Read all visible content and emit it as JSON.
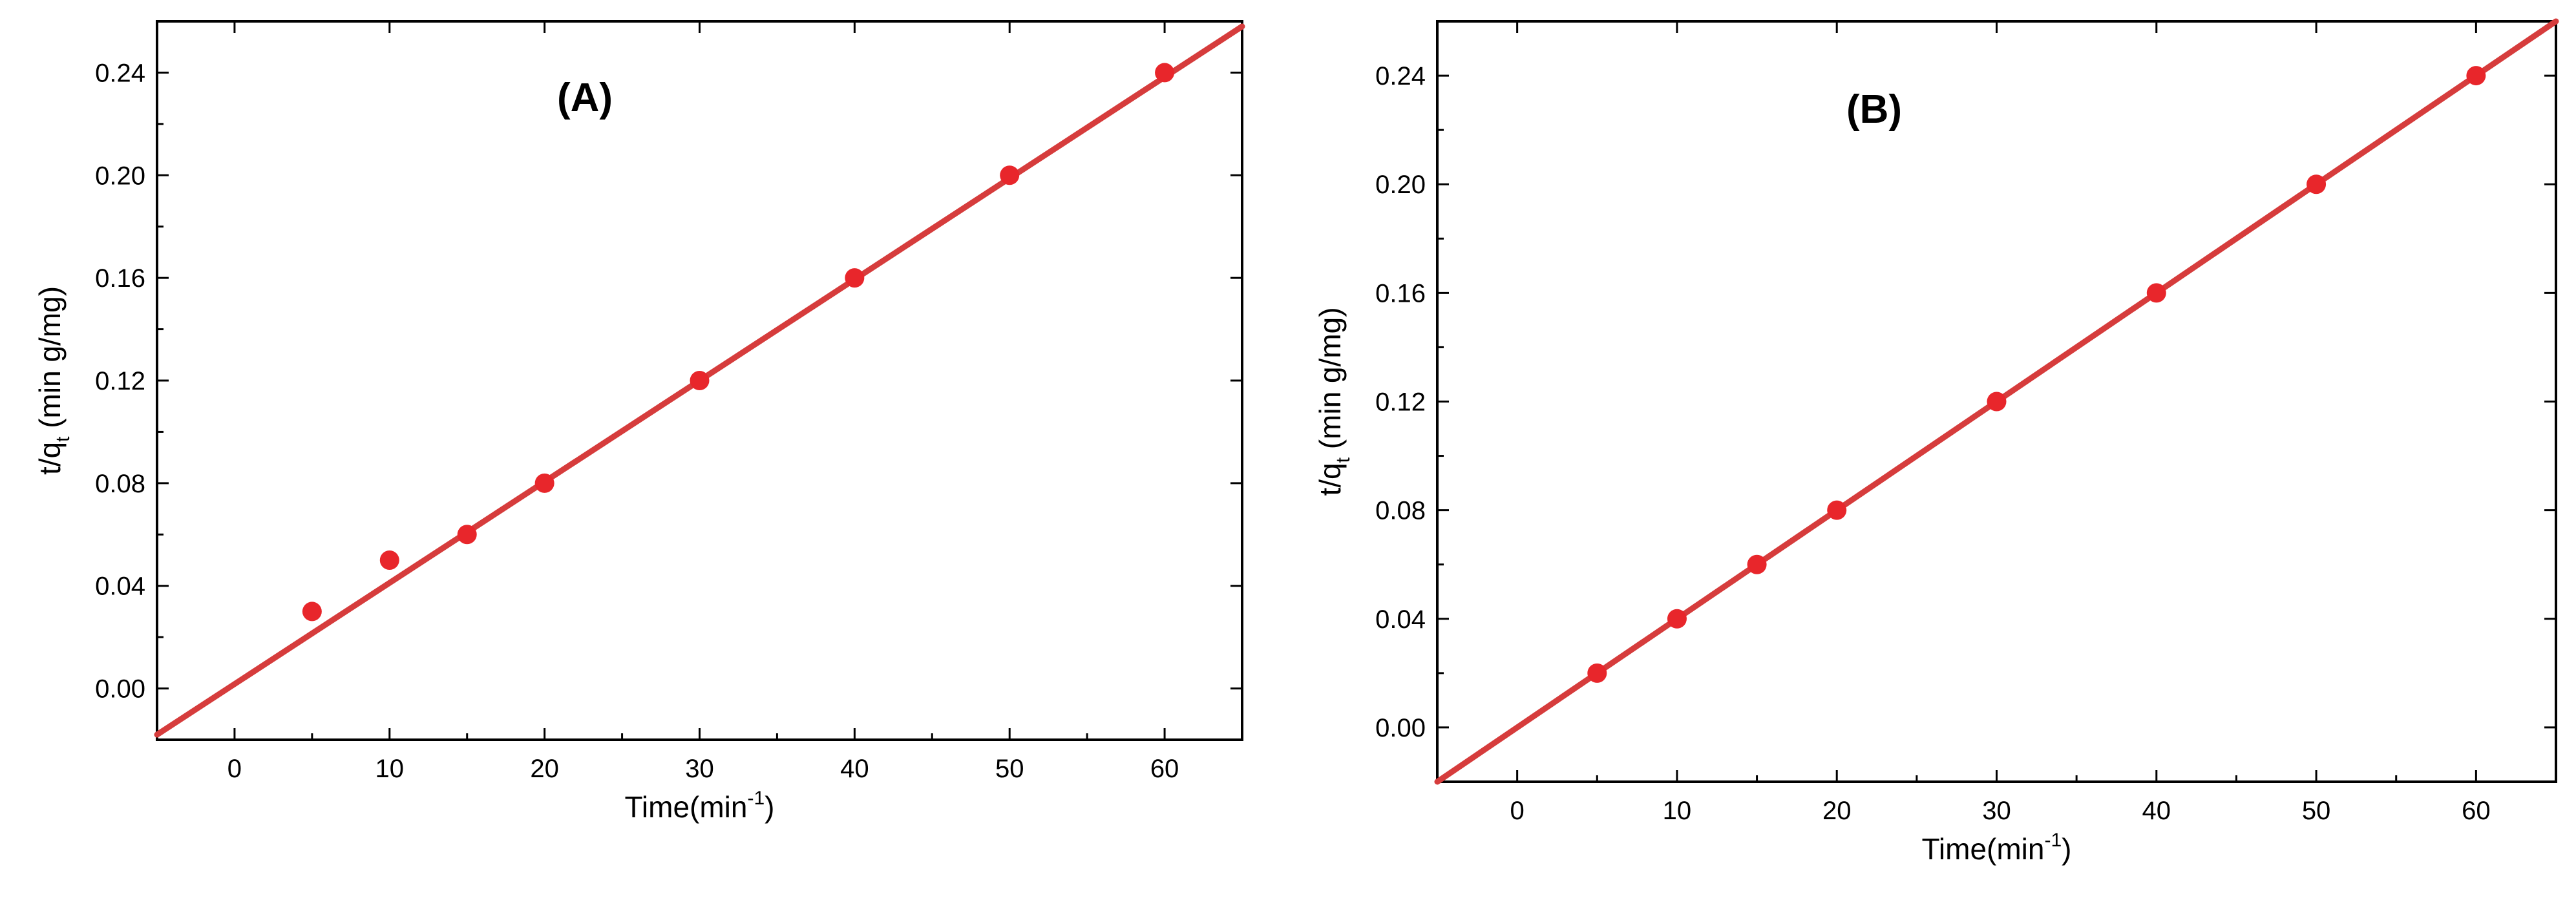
{
  "colors": {
    "marker": "#e8262b",
    "fit_line": "#d63c3c",
    "axes": "#000000",
    "background": "#ffffff"
  },
  "chart_data": [
    {
      "type": "scatter",
      "panel_label": "(A)",
      "xlabel": "Time(min",
      "xlabel_sup": "-1",
      "xlabel_close": ")",
      "ylabel": "t/q",
      "ylabel_sub": "t",
      "ylabel_rest": " (min g/mg)",
      "xlim": [
        -5,
        65
      ],
      "ylim": [
        -0.02,
        0.26
      ],
      "xticks": [
        0,
        10,
        20,
        30,
        40,
        50,
        60
      ],
      "yticks": [
        0.0,
        0.04,
        0.08,
        0.12,
        0.16,
        0.2,
        0.24
      ],
      "grid": false,
      "legend": "none",
      "series": [
        {
          "x": [
            5,
            10,
            15,
            20,
            30,
            40,
            50,
            60
          ],
          "y": [
            0.03,
            0.05,
            0.06,
            0.08,
            0.12,
            0.16,
            0.2,
            0.24
          ]
        }
      ],
      "fit": {
        "type": "linear",
        "x_range": [
          -5,
          65
        ],
        "y_range": [
          -0.018,
          0.258
        ]
      }
    },
    {
      "type": "scatter",
      "panel_label": "(B)",
      "xlabel": "Time(min",
      "xlabel_sup": "-1",
      "xlabel_close": ")",
      "ylabel": "t/q",
      "ylabel_sub": "t",
      "ylabel_rest": " (min g/mg)",
      "xlim": [
        -5,
        65
      ],
      "ylim": [
        -0.02,
        0.26
      ],
      "xticks": [
        0,
        10,
        20,
        30,
        40,
        50,
        60
      ],
      "yticks": [
        0.0,
        0.04,
        0.08,
        0.12,
        0.16,
        0.2,
        0.24
      ],
      "grid": false,
      "legend": "none",
      "series": [
        {
          "x": [
            5,
            10,
            15,
            20,
            30,
            40,
            50,
            60
          ],
          "y": [
            0.02,
            0.04,
            0.06,
            0.08,
            0.12,
            0.16,
            0.2,
            0.24
          ]
        }
      ],
      "fit": {
        "type": "linear",
        "x_range": [
          -5,
          65
        ],
        "y_range": [
          -0.02,
          0.26
        ]
      }
    }
  ]
}
